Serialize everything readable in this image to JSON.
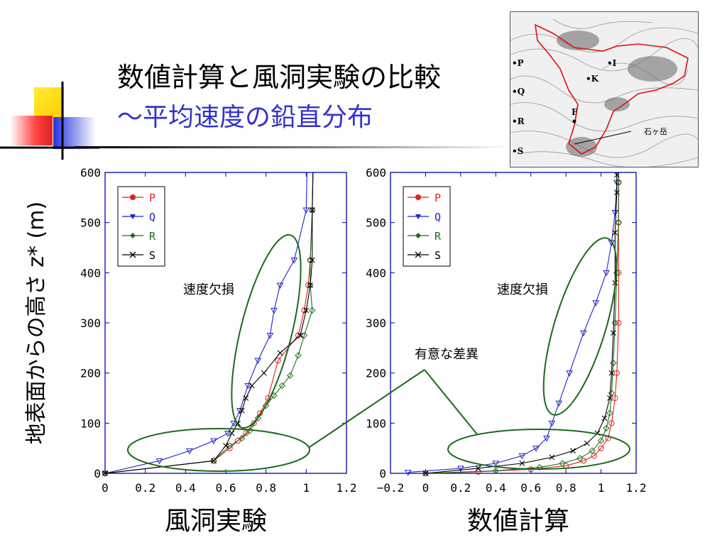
{
  "slide": {
    "title_line1": "数値計算と風洞実験の比較",
    "title_line2": "～平均速度の鉛直分布",
    "ylabel": "地表面からの高さ z* (m)",
    "left_xlabel": "風洞実験",
    "right_xlabel": "数値計算",
    "annotation_deficit": "速度欠損",
    "annotation_significant": "有意な差異"
  },
  "map": {
    "labels": [
      "•P",
      "•Q",
      "•R",
      "•S",
      "•K",
      "•I",
      "F",
      "石ヶ岳"
    ]
  },
  "colors": {
    "P": "#e41f1f",
    "Q": "#2323c8",
    "R": "#1c6e1c",
    "S": "#000000",
    "ellipse": "#1b6a1b",
    "axis": "#0000b0"
  },
  "chart_data": [
    {
      "type": "line",
      "title": "風洞実験",
      "xlabel": "風洞実験",
      "ylabel": "地表面からの高さ z* (m)",
      "xlim": [
        0,
        1.2
      ],
      "ylim": [
        0,
        600
      ],
      "xticks": [
        "0",
        "0.2",
        "0.4",
        "0.6",
        "0.8",
        "1",
        "1.2"
      ],
      "yticks": [
        "0",
        "100",
        "200",
        "300",
        "400",
        "500",
        "600"
      ],
      "legend": "top-left",
      "series": [
        {
          "name": "P",
          "marker": "circle",
          "points": [
            [
              0,
              0
            ],
            [
              0.54,
              25
            ],
            [
              0.62,
              50
            ],
            [
              0.66,
              65
            ],
            [
              0.7,
              80
            ],
            [
              0.74,
              100
            ],
            [
              0.77,
              120
            ],
            [
              0.81,
              150
            ],
            [
              0.86,
              225
            ],
            [
              0.96,
              275
            ],
            [
              0.99,
              325
            ],
            [
              1.01,
              375
            ],
            [
              1.02,
              425
            ],
            [
              1.03,
              525
            ]
          ]
        },
        {
          "name": "Q",
          "marker": "triangle",
          "points": [
            [
              0,
              0
            ],
            [
              0.27,
              25
            ],
            [
              0.42,
              45
            ],
            [
              0.54,
              65
            ],
            [
              0.61,
              80
            ],
            [
              0.64,
              100
            ],
            [
              0.67,
              125
            ],
            [
              0.71,
              175
            ],
            [
              0.76,
              225
            ],
            [
              0.82,
              275
            ],
            [
              0.84,
              325
            ],
            [
              0.87,
              375
            ],
            [
              0.94,
              425
            ],
            [
              1.0,
              525
            ]
          ]
        },
        {
          "name": "R",
          "marker": "diamond",
          "points": [
            [
              0,
              0
            ],
            [
              0.54,
              25
            ],
            [
              0.62,
              55
            ],
            [
              0.68,
              70
            ],
            [
              0.72,
              85
            ],
            [
              0.76,
              110
            ],
            [
              0.8,
              135
            ],
            [
              0.84,
              155
            ],
            [
              0.88,
              175
            ],
            [
              0.92,
              195
            ],
            [
              0.96,
              235
            ],
            [
              0.99,
              275
            ],
            [
              1.03,
              325
            ],
            [
              1.02,
              375
            ],
            [
              1.02,
              425
            ],
            [
              1.03,
              525
            ]
          ]
        },
        {
          "name": "S",
          "marker": "x",
          "points": [
            [
              0,
              0
            ],
            [
              0.54,
              25
            ],
            [
              0.6,
              55
            ],
            [
              0.63,
              80
            ],
            [
              0.66,
              100
            ],
            [
              0.68,
              125
            ],
            [
              0.7,
              150
            ],
            [
              0.73,
              175
            ],
            [
              0.79,
              200
            ],
            [
              0.87,
              240
            ],
            [
              0.97,
              275
            ],
            [
              1.0,
              325
            ],
            [
              1.02,
              375
            ],
            [
              1.03,
              425
            ],
            [
              1.03,
              525
            ]
          ]
        }
      ]
    },
    {
      "type": "line",
      "title": "数値計算",
      "xlabel": "数値計算",
      "ylabel": "",
      "xlim": [
        -0.2,
        1.2
      ],
      "ylim": [
        0,
        600
      ],
      "xticks": [
        "−0.2",
        "0",
        "0.2",
        "0.4",
        "0.6",
        "0.8",
        "1",
        "1.2"
      ],
      "yticks": [
        "0",
        "100",
        "200",
        "300",
        "400",
        "500",
        "600"
      ],
      "legend": "top-left",
      "series": [
        {
          "name": "P",
          "marker": "circle",
          "points": [
            [
              0,
              0
            ],
            [
              0.3,
              3
            ],
            [
              0.6,
              8
            ],
            [
              0.8,
              15
            ],
            [
              0.9,
              25
            ],
            [
              0.96,
              35
            ],
            [
              1.0,
              50
            ],
            [
              1.04,
              70
            ],
            [
              1.06,
              100
            ],
            [
              1.08,
              150
            ],
            [
              1.09,
              200
            ],
            [
              1.1,
              300
            ],
            [
              1.1,
              400
            ],
            [
              1.1,
              500
            ],
            [
              1.1,
              580
            ]
          ]
        },
        {
          "name": "Q",
          "marker": "triangle",
          "points": [
            [
              -0.1,
              2
            ],
            [
              0.2,
              10
            ],
            [
              0.4,
              20
            ],
            [
              0.55,
              35
            ],
            [
              0.63,
              50
            ],
            [
              0.69,
              70
            ],
            [
              0.72,
              100
            ],
            [
              0.76,
              140
            ],
            [
              0.82,
              200
            ],
            [
              0.9,
              280
            ],
            [
              0.97,
              340
            ],
            [
              1.03,
              400
            ],
            [
              1.06,
              460
            ],
            [
              1.08,
              520
            ],
            [
              1.09,
              580
            ]
          ]
        },
        {
          "name": "R",
          "marker": "diamond",
          "points": [
            [
              0,
              0
            ],
            [
              0.4,
              5
            ],
            [
              0.65,
              12
            ],
            [
              0.78,
              20
            ],
            [
              0.88,
              30
            ],
            [
              0.95,
              45
            ],
            [
              1.0,
              65
            ],
            [
              1.03,
              90
            ],
            [
              1.05,
              120
            ],
            [
              1.06,
              160
            ],
            [
              1.07,
              220
            ],
            [
              1.08,
              300
            ],
            [
              1.09,
              400
            ],
            [
              1.1,
              500
            ],
            [
              1.1,
              580
            ]
          ]
        },
        {
          "name": "S",
          "marker": "x",
          "points": [
            [
              0,
              0
            ],
            [
              0.3,
              10
            ],
            [
              0.55,
              20
            ],
            [
              0.72,
              32
            ],
            [
              0.84,
              45
            ],
            [
              0.92,
              60
            ],
            [
              0.98,
              80
            ],
            [
              1.02,
              110
            ],
            [
              1.05,
              150
            ],
            [
              1.06,
              200
            ],
            [
              1.07,
              280
            ],
            [
              1.08,
              380
            ],
            [
              1.08,
              480
            ],
            [
              1.09,
              560
            ],
            [
              1.09,
              595
            ]
          ]
        }
      ]
    }
  ]
}
